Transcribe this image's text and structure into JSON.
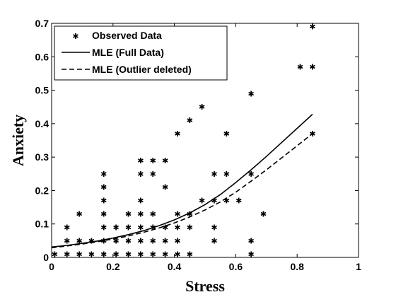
{
  "chart_data": {
    "type": "scatter",
    "xlabel": "Stress",
    "ylabel": "Anxiety",
    "xlim": [
      0,
      1
    ],
    "ylim": [
      0,
      0.7
    ],
    "xticks": [
      0,
      0.2,
      0.4,
      0.6,
      0.8,
      1
    ],
    "xtick_labels": [
      "0",
      "0.2",
      "0.4",
      "0.6",
      "0.8",
      "1"
    ],
    "yticks": [
      0,
      0.1,
      0.2,
      0.3,
      0.4,
      0.5,
      0.6,
      0.7
    ],
    "ytick_labels": [
      "0",
      "0.1",
      "0.2",
      "0.3",
      "0.4",
      "0.5",
      "0.6",
      "0.7"
    ],
    "grid": false,
    "legend_position": "top-left",
    "colors": {
      "markers": "#000000",
      "lines": "#000000"
    },
    "series": [
      {
        "name": "Observed Data",
        "kind": "scatter",
        "marker": "*",
        "points": [
          [
            0.01,
            0.01
          ],
          [
            0.05,
            0.01
          ],
          [
            0.05,
            0.05
          ],
          [
            0.05,
            0.09
          ],
          [
            0.09,
            0.01
          ],
          [
            0.09,
            0.05
          ],
          [
            0.09,
            0.13
          ],
          [
            0.13,
            0.01
          ],
          [
            0.13,
            0.05
          ],
          [
            0.17,
            0.01
          ],
          [
            0.17,
            0.05
          ],
          [
            0.17,
            0.09
          ],
          [
            0.17,
            0.13
          ],
          [
            0.17,
            0.17
          ],
          [
            0.17,
            0.21
          ],
          [
            0.17,
            0.25
          ],
          [
            0.21,
            0.01
          ],
          [
            0.21,
            0.05
          ],
          [
            0.21,
            0.09
          ],
          [
            0.25,
            0.01
          ],
          [
            0.25,
            0.05
          ],
          [
            0.25,
            0.09
          ],
          [
            0.25,
            0.13
          ],
          [
            0.29,
            0.01
          ],
          [
            0.29,
            0.05
          ],
          [
            0.29,
            0.09
          ],
          [
            0.29,
            0.13
          ],
          [
            0.29,
            0.17
          ],
          [
            0.29,
            0.25
          ],
          [
            0.29,
            0.29
          ],
          [
            0.33,
            0.01
          ],
          [
            0.33,
            0.05
          ],
          [
            0.33,
            0.09
          ],
          [
            0.33,
            0.13
          ],
          [
            0.33,
            0.25
          ],
          [
            0.33,
            0.29
          ],
          [
            0.37,
            0.01
          ],
          [
            0.37,
            0.05
          ],
          [
            0.37,
            0.09
          ],
          [
            0.37,
            0.21
          ],
          [
            0.37,
            0.29
          ],
          [
            0.41,
            0.01
          ],
          [
            0.41,
            0.05
          ],
          [
            0.41,
            0.09
          ],
          [
            0.41,
            0.13
          ],
          [
            0.41,
            0.37
          ],
          [
            0.45,
            0.01
          ],
          [
            0.45,
            0.09
          ],
          [
            0.45,
            0.13
          ],
          [
            0.45,
            0.41
          ],
          [
            0.49,
            0.17
          ],
          [
            0.49,
            0.45
          ],
          [
            0.53,
            0.05
          ],
          [
            0.53,
            0.09
          ],
          [
            0.53,
            0.17
          ],
          [
            0.53,
            0.25
          ],
          [
            0.57,
            0.17
          ],
          [
            0.57,
            0.25
          ],
          [
            0.57,
            0.37
          ],
          [
            0.61,
            0.17
          ],
          [
            0.65,
            0.01
          ],
          [
            0.65,
            0.05
          ],
          [
            0.65,
            0.25
          ],
          [
            0.65,
            0.49
          ],
          [
            0.69,
            0.13
          ],
          [
            0.81,
            0.57
          ],
          [
            0.85,
            0.37
          ],
          [
            0.85,
            0.57
          ],
          [
            0.85,
            0.69
          ]
        ]
      },
      {
        "name": "MLE (Full Data)",
        "kind": "line",
        "dash": "solid",
        "points": [
          [
            0.0,
            0.031
          ],
          [
            0.05,
            0.036
          ],
          [
            0.1,
            0.042
          ],
          [
            0.15,
            0.049
          ],
          [
            0.2,
            0.058
          ],
          [
            0.25,
            0.068
          ],
          [
            0.3,
            0.08
          ],
          [
            0.35,
            0.095
          ],
          [
            0.4,
            0.112
          ],
          [
            0.45,
            0.133
          ],
          [
            0.5,
            0.158
          ],
          [
            0.55,
            0.188
          ],
          [
            0.6,
            0.224
          ],
          [
            0.65,
            0.262
          ],
          [
            0.7,
            0.302
          ],
          [
            0.75,
            0.344
          ],
          [
            0.8,
            0.386
          ],
          [
            0.85,
            0.428
          ]
        ]
      },
      {
        "name": "MLE (Outlier deleted)",
        "kind": "line",
        "dash": "dashed",
        "points": [
          [
            0.0,
            0.029
          ],
          [
            0.05,
            0.034
          ],
          [
            0.1,
            0.04
          ],
          [
            0.15,
            0.047
          ],
          [
            0.2,
            0.055
          ],
          [
            0.25,
            0.064
          ],
          [
            0.3,
            0.075
          ],
          [
            0.35,
            0.088
          ],
          [
            0.4,
            0.103
          ],
          [
            0.45,
            0.121
          ],
          [
            0.5,
            0.142
          ],
          [
            0.55,
            0.166
          ],
          [
            0.6,
            0.195
          ],
          [
            0.65,
            0.228
          ],
          [
            0.7,
            0.262
          ],
          [
            0.75,
            0.298
          ],
          [
            0.8,
            0.334
          ],
          [
            0.85,
            0.37
          ]
        ]
      }
    ]
  }
}
